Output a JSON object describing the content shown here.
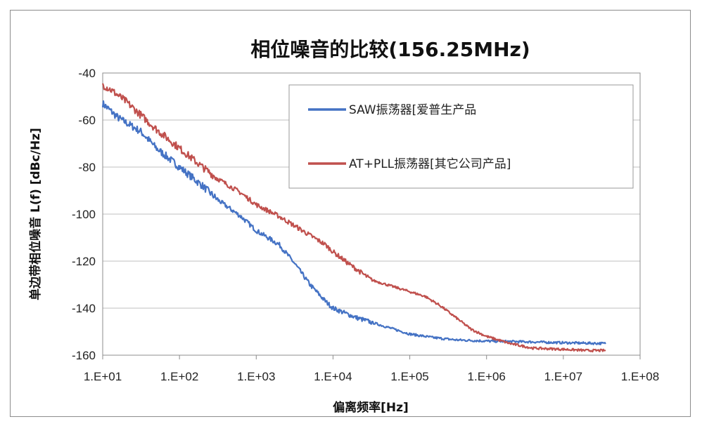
{
  "chart_data": {
    "type": "line",
    "title": "相位噪音的比较(156.25MHz)",
    "xlabel": "偏离频率[Hz]",
    "ylabel": "单边带相位噪音 L(f) [dBc/Hz]",
    "xscale": "log10",
    "xlim_exp": [
      1,
      8
    ],
    "ylim": [
      -160,
      -40
    ],
    "x_ticks": [
      "1.E+01",
      "1.E+02",
      "1.E+03",
      "1.E+04",
      "1.E+05",
      "1.E+06",
      "1.E+07",
      "1.E+08"
    ],
    "y_ticks": [
      "-40",
      "-60",
      "-80",
      "-100",
      "-120",
      "-140",
      "-160"
    ],
    "grid": true,
    "legend_position": "top-right",
    "series": [
      {
        "name": "SAW振荡器[爱普生产品",
        "color": "#4472c4",
        "x_exp": [
          1.0,
          1.2,
          1.5,
          1.7,
          2.0,
          2.3,
          2.5,
          2.8,
          3.0,
          3.3,
          3.5,
          3.7,
          3.9,
          4.0,
          4.3,
          4.6,
          5.0,
          5.3,
          5.6,
          6.0,
          6.5,
          7.0,
          7.3,
          7.55
        ],
        "values": [
          -53,
          -59,
          -65,
          -72,
          -80,
          -88,
          -94,
          -101,
          -107,
          -113,
          -121,
          -130,
          -137,
          -140,
          -144,
          -147,
          -151,
          -152.5,
          -153.5,
          -154,
          -154.3,
          -154.7,
          -154.9,
          -155
        ]
      },
      {
        "name": "AT+PLL振荡器[其它公司产品]",
        "color": "#c0504d",
        "x_exp": [
          1.0,
          1.1,
          1.3,
          1.5,
          1.7,
          2.0,
          2.3,
          2.5,
          2.8,
          3.0,
          3.3,
          3.6,
          3.9,
          4.0,
          4.2,
          4.5,
          4.8,
          5.0,
          5.2,
          5.4,
          5.6,
          5.8,
          6.0,
          6.3,
          6.6,
          7.0,
          7.3,
          7.55
        ],
        "values": [
          -45,
          -47,
          -52,
          -58,
          -64,
          -72,
          -80,
          -85,
          -91,
          -96,
          -101,
          -107,
          -113,
          -116,
          -121,
          -128,
          -131,
          -133,
          -135,
          -139,
          -144,
          -149,
          -152,
          -155,
          -157,
          -157.5,
          -158,
          -158
        ]
      }
    ]
  }
}
